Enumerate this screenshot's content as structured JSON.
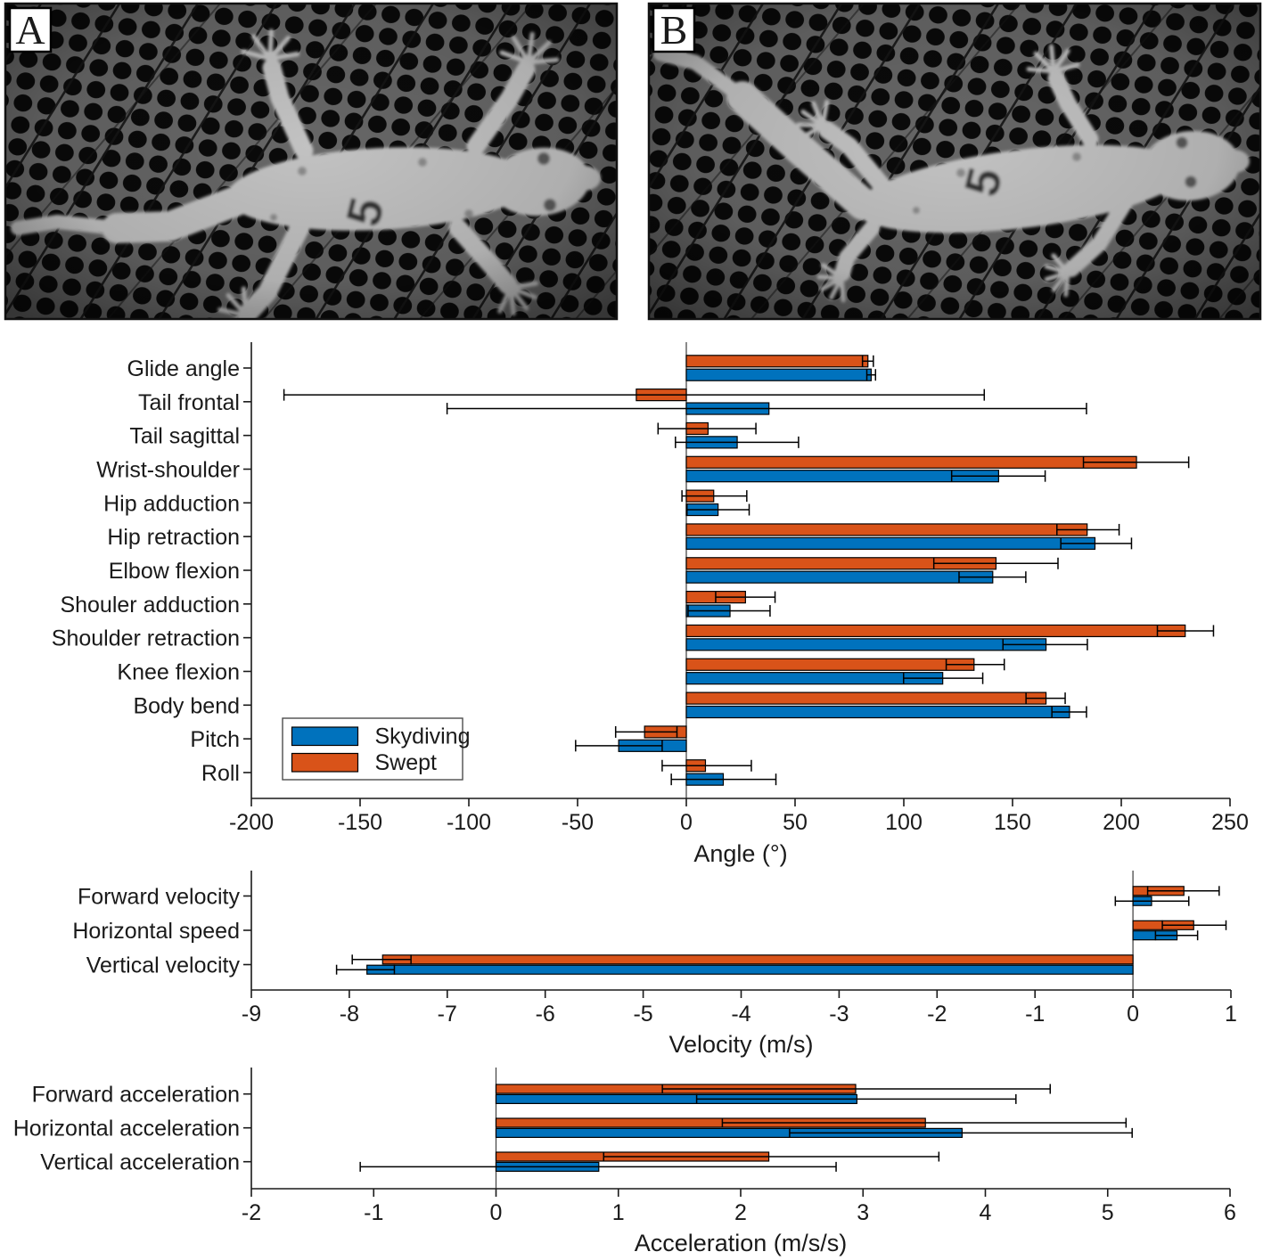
{
  "figure": {
    "panels": [
      {
        "label": "A",
        "pose": "skydiving",
        "gecko_marking": "5"
      },
      {
        "label": "B",
        "pose": "swept",
        "gecko_marking": "5"
      }
    ]
  },
  "colors": {
    "skydiving": "#0072BD",
    "swept": "#D95319",
    "bar_edge": "#000000",
    "axis": "#1a1a1a",
    "error_bar": "#000000"
  },
  "legend": {
    "entries": [
      {
        "label": "Skydiving",
        "color": "#0072BD"
      },
      {
        "label": "Swept",
        "color": "#D95319"
      }
    ]
  },
  "chart_data": [
    {
      "type": "bar",
      "orientation": "horizontal",
      "xlabel": "Angle (°)",
      "xlim": [
        -200,
        250
      ],
      "xticks": [
        -200,
        -150,
        -100,
        -50,
        0,
        50,
        100,
        150,
        200,
        250
      ],
      "categories": [
        "Glide angle",
        "Tail frontal",
        "Tail sagittal",
        "Wrist-shoulder",
        "Hip adduction",
        "Hip retraction",
        "Elbow flexion",
        "Shouler adduction",
        "Shoulder retraction",
        "Knee flexion",
        "Body bend",
        "Pitch",
        "Roll"
      ],
      "series": [
        {
          "name": "Swept",
          "color": "#D95319",
          "values": [
            83.5,
            -23,
            10,
            207,
            12.6,
            184.3,
            142.4,
            27.2,
            229.4,
            132.3,
            165.4,
            -19.2,
            8.8
          ],
          "error_low": [
            81,
            -185,
            -13,
            182.6,
            -2,
            170.4,
            113.8,
            13.5,
            216.6,
            119.5,
            156.2,
            -32.5,
            -11.1
          ],
          "error_high": [
            86,
            137,
            32,
            231,
            27.8,
            199,
            170.9,
            40.8,
            242.4,
            146.2,
            174.2,
            -4.3,
            29.9
          ]
        },
        {
          "name": "Skydiving",
          "color": "#0072BD",
          "values": [
            85,
            38,
            23.4,
            143.6,
            14.6,
            187.9,
            140.9,
            20.1,
            165.4,
            117.9,
            176.2,
            -31.1,
            17
          ],
          "error_low": [
            83,
            -110,
            -5,
            122,
            0.3,
            172.2,
            125.4,
            0.8,
            145.6,
            99.9,
            168.1,
            -50.9,
            -6.9
          ],
          "error_high": [
            87,
            184,
            51.6,
            165,
            28.9,
            204.7,
            156.1,
            38.5,
            184.4,
            136.3,
            184,
            -11.1,
            41.2
          ]
        }
      ],
      "legend_visible": true
    },
    {
      "type": "bar",
      "orientation": "horizontal",
      "xlabel": "Velocity (m/s)",
      "xlim": [
        -9,
        1
      ],
      "xticks": [
        -9,
        -8,
        -7,
        -6,
        -5,
        -4,
        -3,
        -2,
        -1,
        0,
        1
      ],
      "categories": [
        "Forward velocity",
        "Horizontal speed",
        "Vertical velocity"
      ],
      "series": [
        {
          "name": "Swept",
          "color": "#D95319",
          "values": [
            0.52,
            0.62,
            -7.66
          ],
          "error_low": [
            0.15,
            0.3,
            -7.97
          ],
          "error_high": [
            0.88,
            0.95,
            -7.37
          ]
        },
        {
          "name": "Skydiving",
          "color": "#0072BD",
          "values": [
            0.19,
            0.45,
            -7.82
          ],
          "error_low": [
            -0.18,
            0.23,
            -8.13
          ],
          "error_high": [
            0.57,
            0.66,
            -7.54
          ]
        }
      ],
      "legend_visible": false
    },
    {
      "type": "bar",
      "orientation": "horizontal",
      "xlabel": "Acceleration (m/s/s)",
      "xlim": [
        -2,
        6
      ],
      "xticks": [
        -2,
        -1,
        0,
        1,
        2,
        3,
        4,
        5,
        6
      ],
      "categories": [
        "Forward acceleration",
        "Horizontal acceleration",
        "Vertical acceleration"
      ],
      "series": [
        {
          "name": "Swept",
          "color": "#D95319",
          "values": [
            2.94,
            3.51,
            2.23
          ],
          "error_low": [
            1.36,
            1.85,
            0.88
          ],
          "error_high": [
            4.53,
            5.15,
            3.62
          ]
        },
        {
          "name": "Skydiving",
          "color": "#0072BD",
          "values": [
            2.95,
            3.81,
            0.84
          ],
          "error_low": [
            1.64,
            2.4,
            -1.11
          ],
          "error_high": [
            4.25,
            5.2,
            2.78
          ]
        }
      ],
      "legend_visible": false
    }
  ]
}
